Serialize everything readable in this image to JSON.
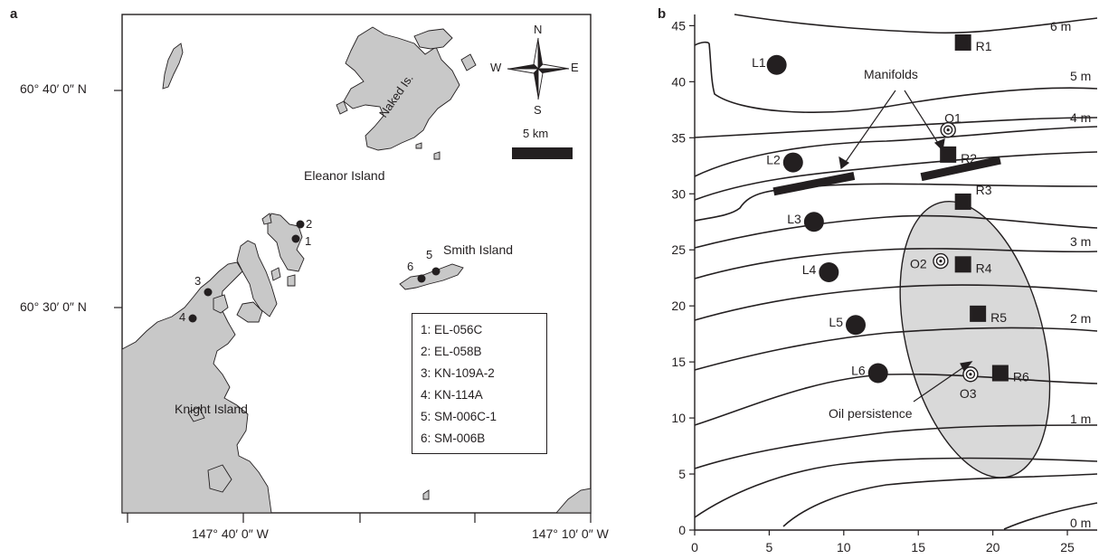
{
  "panel_a": {
    "letter": "a",
    "lat_labels": [
      "60° 40′ 0″ N",
      "60° 30′ 0″ N"
    ],
    "lon_labels": [
      "147° 40′ 0″ W",
      "147° 10′ 0″ W"
    ],
    "island_labels": {
      "naked": "Naked Is.",
      "eleanor": "Eleanor Island",
      "smith": "Smith Island",
      "knight": "Knight Island"
    },
    "compass": {
      "n": "N",
      "s": "S",
      "e": "E",
      "w": "W"
    },
    "scale": "5 km",
    "site_markers": [
      "1",
      "2",
      "3",
      "4",
      "5",
      "6"
    ],
    "legend": [
      "1: EL-056C",
      "2: EL-058B",
      "3: KN-109A-2",
      "4: KN-114A",
      "5: SM-006C-1",
      "6: SM-006B"
    ],
    "land_color": "#c8c8c8"
  },
  "panel_b": {
    "letter": "b",
    "annotations": {
      "manifolds": "Manifolds",
      "oil": "Oil persistence"
    },
    "shading_color": "#d9d9d9"
  },
  "chart_data": {
    "type": "scatter",
    "title": "",
    "xlabel": "",
    "ylabel": "",
    "xlim": [
      0,
      27
    ],
    "ylim": [
      0,
      46
    ],
    "xticks": [
      0,
      5,
      10,
      15,
      20,
      25
    ],
    "yticks": [
      0,
      5,
      10,
      15,
      20,
      25,
      30,
      35,
      40,
      45
    ],
    "contour_labels": [
      "6 m",
      "5 m",
      "4 m",
      "3 m",
      "2 m",
      "1 m",
      "0 m"
    ],
    "series": [
      {
        "marker": "circle",
        "points": [
          {
            "label": "L1",
            "x": 5.5,
            "y": 41.5
          },
          {
            "label": "L2",
            "x": 6.6,
            "y": 32.8
          },
          {
            "label": "L3",
            "x": 8.0,
            "y": 27.5
          },
          {
            "label": "L4",
            "x": 9.0,
            "y": 23.0
          },
          {
            "label": "L5",
            "x": 10.8,
            "y": 18.3
          },
          {
            "label": "L6",
            "x": 12.3,
            "y": 14.0
          }
        ]
      },
      {
        "marker": "square",
        "points": [
          {
            "label": "R1",
            "x": 18.0,
            "y": 43.5
          },
          {
            "label": "R2",
            "x": 17.0,
            "y": 33.5
          },
          {
            "label": "R3",
            "x": 18.0,
            "y": 29.3
          },
          {
            "label": "R4",
            "x": 18.0,
            "y": 23.7
          },
          {
            "label": "R5",
            "x": 19.0,
            "y": 19.3
          },
          {
            "label": "R6",
            "x": 20.5,
            "y": 14.0
          }
        ]
      },
      {
        "marker": "target",
        "points": [
          {
            "label": "O1",
            "x": 17.0,
            "y": 35.7
          },
          {
            "label": "O2",
            "x": 16.5,
            "y": 24.0
          },
          {
            "label": "O3",
            "x": 18.5,
            "y": 13.9
          }
        ]
      }
    ],
    "manifolds": [
      {
        "x1": 5.3,
        "y1": 30.2,
        "x2": 10.7,
        "y2": 31.6
      },
      {
        "x1": 15.2,
        "y1": 31.5,
        "x2": 20.5,
        "y2": 33.0
      }
    ],
    "oil_zone": {
      "cx": 18.8,
      "cy": 17.0,
      "rx": 4.6,
      "ry": 12.6,
      "rotate_deg": -14
    }
  }
}
